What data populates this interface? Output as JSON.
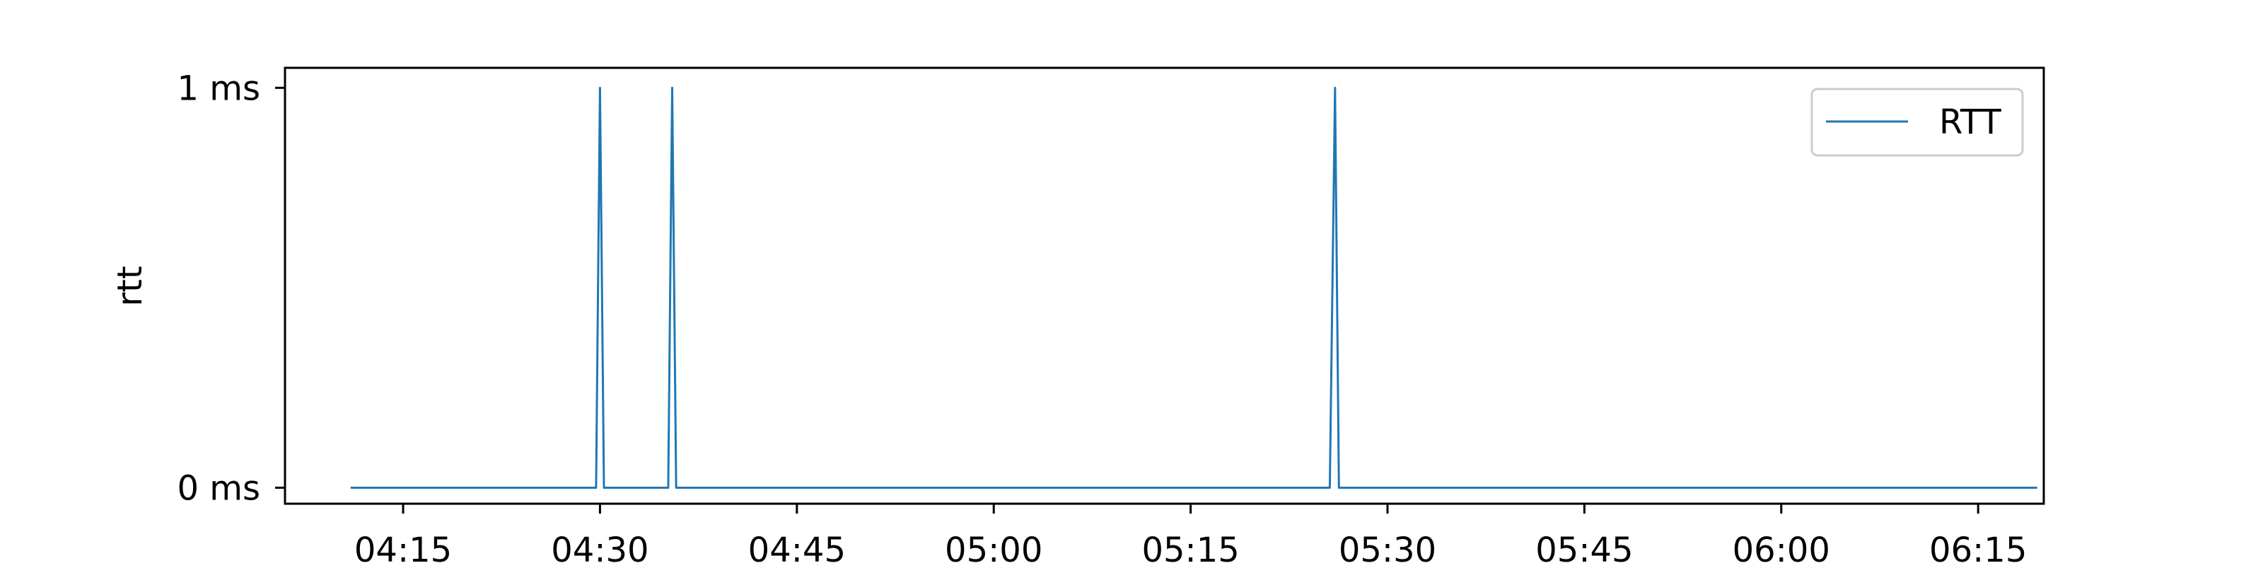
{
  "chart_data": {
    "type": "line",
    "title": "",
    "xlabel": "",
    "ylabel": "rtt",
    "x_ticks": [
      "04:15",
      "04:30",
      "04:45",
      "05:00",
      "05:15",
      "05:30",
      "05:45",
      "06:00",
      "06:15"
    ],
    "x_tick_minutes": [
      255,
      270,
      285,
      300,
      315,
      330,
      345,
      360,
      375
    ],
    "xlim": [
      "04:06",
      "06:20"
    ],
    "y_ticks": [
      "0 ms",
      "1 ms"
    ],
    "y_tick_values": [
      0,
      1
    ],
    "ylim": [
      -0.04,
      1.05
    ],
    "grid": false,
    "legend_position": "top-right",
    "series": [
      {
        "name": "RTT",
        "color": "#1f77b4",
        "points": [
          {
            "x": "04:11",
            "y": 0
          },
          {
            "x": "04:29.7",
            "y": 0
          },
          {
            "x": "04:30.0",
            "y": 1
          },
          {
            "x": "04:30.3",
            "y": 0
          },
          {
            "x": "04:35.2",
            "y": 0
          },
          {
            "x": "04:35.5",
            "y": 1
          },
          {
            "x": "04:35.8",
            "y": 0
          },
          {
            "x": "05:25.6",
            "y": 0
          },
          {
            "x": "05:26.0",
            "y": 1
          },
          {
            "x": "05:26.3",
            "y": 0
          },
          {
            "x": "06:19.5",
            "y": 0
          }
        ]
      }
    ]
  }
}
